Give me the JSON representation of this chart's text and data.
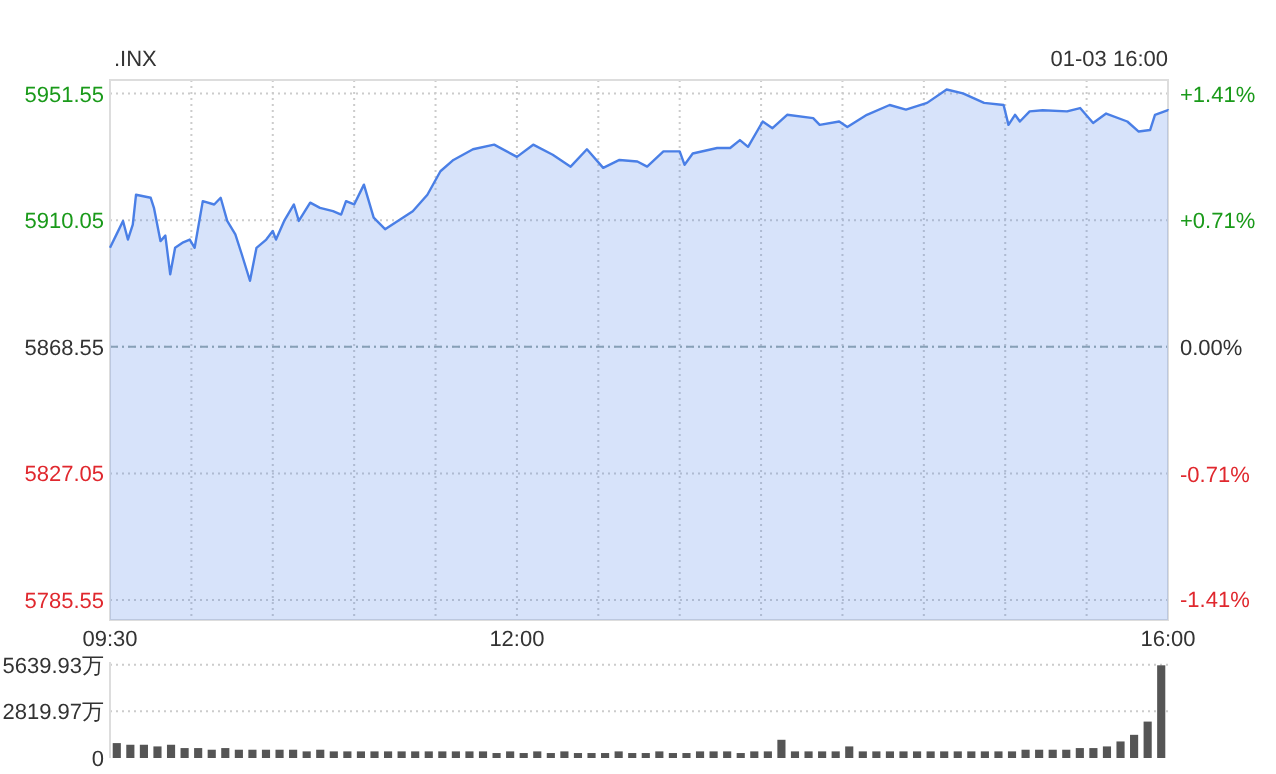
{
  "chart_data": [
    {
      "type": "area",
      "title": ".INX",
      "annotations": [
        "01-03 16:00"
      ],
      "x": [
        9.5,
        9.54,
        9.58,
        9.61,
        9.64,
        9.66,
        9.75,
        9.77,
        9.81,
        9.84,
        9.87,
        9.9,
        9.95,
        9.99,
        10.02,
        10.07,
        10.14,
        10.18,
        10.22,
        10.27,
        10.31,
        10.36,
        10.4,
        10.46,
        10.5,
        10.52,
        10.57,
        10.63,
        10.66,
        10.73,
        10.79,
        10.87,
        10.92,
        10.95,
        11.0,
        11.06,
        11.12,
        11.19,
        11.28,
        11.36,
        11.45,
        11.53,
        11.61,
        11.73,
        11.86,
        12.0,
        12.1,
        12.22,
        12.33,
        12.43,
        12.53,
        12.63,
        12.74,
        12.8,
        12.9,
        13.0,
        13.03,
        13.08,
        13.23,
        13.31,
        13.37,
        13.42,
        13.51,
        13.57,
        13.66,
        13.82,
        13.86,
        13.98,
        14.03,
        14.15,
        14.29,
        14.39,
        14.52,
        14.64,
        14.74,
        14.87,
        14.99,
        15.02,
        15.06,
        15.09,
        15.15,
        15.23,
        15.38,
        15.46,
        15.54,
        15.62,
        15.75,
        15.82,
        15.89,
        15.92,
        16.0
      ],
      "series": [
        {
          "color": "#4a7fe6",
          "values": [
            5901.0,
            5905.4,
            5909.8,
            5903.7,
            5908.6,
            5918.4,
            5917.4,
            5914.1,
            5903.2,
            5905.0,
            5892.3,
            5901.0,
            5902.8,
            5903.7,
            5901.0,
            5916.3,
            5915.2,
            5917.4,
            5909.8,
            5905.4,
            5898.8,
            5890.2,
            5901.0,
            5903.7,
            5906.5,
            5903.7,
            5909.8,
            5915.2,
            5909.8,
            5915.8,
            5914.1,
            5913.0,
            5911.9,
            5916.3,
            5915.2,
            5921.7,
            5910.9,
            5907.1,
            5910.2,
            5913.0,
            5918.4,
            5926.1,
            5929.8,
            5933.3,
            5934.8,
            5930.8,
            5934.8,
            5931.5,
            5927.6,
            5933.3,
            5927.2,
            5929.8,
            5929.3,
            5927.6,
            5932.6,
            5932.6,
            5928.2,
            5931.9,
            5933.7,
            5933.7,
            5936.3,
            5934.1,
            5942.4,
            5940.2,
            5944.6,
            5943.5,
            5941.3,
            5942.4,
            5940.6,
            5944.6,
            5947.8,
            5946.3,
            5948.5,
            5952.9,
            5951.6,
            5948.5,
            5947.8,
            5941.3,
            5944.6,
            5942.4,
            5945.7,
            5946.1,
            5945.7,
            5946.8,
            5941.9,
            5945.0,
            5942.4,
            5939.1,
            5939.6,
            5944.6,
            5946.1
          ]
        }
      ],
      "xlim": [
        9.5,
        16
      ],
      "xticks": [
        {
          "value": 9.5,
          "label": "09:30"
        },
        {
          "value": 10,
          "label": null
        },
        {
          "value": 10.5,
          "label": null
        },
        {
          "value": 11,
          "label": null
        },
        {
          "value": 11.5,
          "label": null
        },
        {
          "value": 12,
          "label": "12:00"
        },
        {
          "value": 12.5,
          "label": null
        },
        {
          "value": 13,
          "label": null
        },
        {
          "value": 13.5,
          "label": null
        },
        {
          "value": 14,
          "label": null
        },
        {
          "value": 14.5,
          "label": null
        },
        {
          "value": 15,
          "label": null
        },
        {
          "value": 15.5,
          "label": null
        },
        {
          "value": 16,
          "label": "16:00"
        }
      ],
      "ylim": [
        5779,
        5956
      ],
      "yticks": [
        5785.55,
        5827.05,
        5868.55,
        5910.05,
        5951.55
      ],
      "y2lim": [
        -1.526,
        1.49
      ],
      "y2ticks": [
        {
          "value": -1.41,
          "label": "-1.41%"
        },
        {
          "value": -0.71,
          "label": "-0.71%"
        },
        {
          "value": 0,
          "label": "0.00%"
        },
        {
          "value": 0.71,
          "label": "+0.71%"
        },
        {
          "value": 1.41,
          "label": "+1.41%"
        }
      ],
      "ref_lines": [
        {
          "axis": "y",
          "value": 5868.55,
          "line_style": "dashed"
        }
      ],
      "grid": true
    },
    {
      "type": "bar",
      "color": "#555555",
      "categories": [
        null,
        null,
        null,
        null,
        null,
        null,
        null,
        null,
        null,
        null,
        null,
        null,
        null,
        null,
        null,
        null,
        null,
        null,
        null,
        null,
        null,
        null,
        null,
        null,
        null,
        null,
        null,
        null,
        null,
        null,
        null,
        null,
        null,
        null,
        null,
        null,
        null,
        null,
        null,
        null,
        null,
        null,
        null,
        null,
        null,
        null,
        null,
        null,
        null,
        null,
        null,
        null,
        null,
        null,
        null,
        null,
        null,
        null,
        null,
        null,
        null,
        null,
        null,
        null,
        null,
        null,
        null,
        null,
        null,
        null,
        null,
        null,
        null,
        null,
        null,
        null,
        null,
        null
      ],
      "values": [
        900,
        800,
        800,
        700,
        800,
        600,
        600,
        500,
        600,
        500,
        500,
        500,
        500,
        500,
        400,
        500,
        400,
        400,
        400,
        400,
        400,
        400,
        400,
        400,
        400,
        400,
        400,
        400,
        300,
        400,
        300,
        400,
        300,
        400,
        300,
        300,
        300,
        400,
        300,
        300,
        400,
        300,
        300,
        400,
        400,
        400,
        300,
        400,
        400,
        1100,
        400,
        400,
        400,
        400,
        700,
        400,
        400,
        400,
        400,
        400,
        400,
        400,
        400,
        400,
        400,
        400,
        400,
        500,
        500,
        500,
        500,
        600,
        600,
        700,
        1000,
        1400,
        2200,
        5600
      ],
      "ylim": [
        0,
        5800
      ],
      "yticks": [
        0,
        {
          "value": 2819.97,
          "label": "2819.97万"
        },
        {
          "value": 5639.93,
          "label": "5639.93万"
        }
      ],
      "grid": "y",
      "tick_labels": "y"
    }
  ]
}
